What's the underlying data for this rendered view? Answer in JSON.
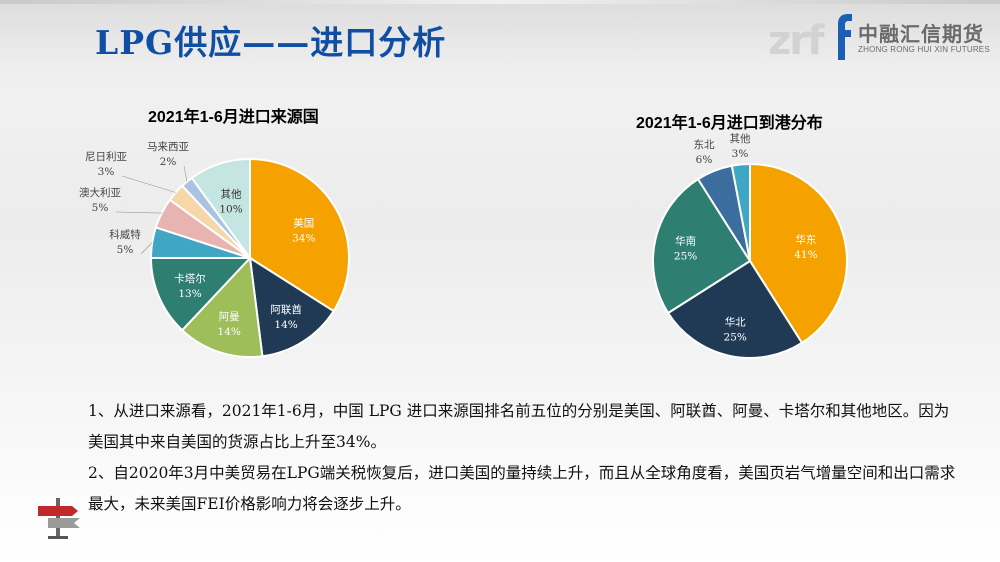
{
  "header": {
    "title": "LPG供应——进口分析",
    "logo": {
      "cn": "中融汇信期货",
      "en": "ZHONG RONG HUI XIN FUTURES",
      "watermark": "zrf"
    }
  },
  "chart_data": [
    {
      "type": "pie",
      "title": "2021年1-6月进口来源国",
      "slices": [
        {
          "label": "美国",
          "value": 34,
          "text": "34%",
          "color": "#F5A200"
        },
        {
          "label": "阿联酋",
          "value": 14,
          "text": "14%",
          "color": "#203A55"
        },
        {
          "label": "阿曼",
          "value": 14,
          "text": "14%",
          "color": "#9DBE58"
        },
        {
          "label": "卡塔尔",
          "value": 13,
          "text": "13%",
          "color": "#2E7F72"
        },
        {
          "label": "科威特",
          "value": 5,
          "text": "5%",
          "color": "#3FA6C4"
        },
        {
          "label": "澳大利亚",
          "value": 5,
          "text": "5%",
          "color": "#E8B4B2"
        },
        {
          "label": "尼日利亚",
          "value": 3,
          "text": "3%",
          "color": "#F6D7A9"
        },
        {
          "label": "马来西亚",
          "value": 2,
          "text": "2%",
          "color": "#A9C4E0"
        },
        {
          "label": "其他",
          "value": 10,
          "text": "10%",
          "color": "#C5E5E2"
        }
      ]
    },
    {
      "type": "pie",
      "title": "2021年1-6月进口到港分布",
      "slices": [
        {
          "label": "华东",
          "value": 41,
          "text": "41%",
          "color": "#F5A200"
        },
        {
          "label": "华北",
          "value": 25,
          "text": "25%",
          "color": "#203A55"
        },
        {
          "label": "华南",
          "value": 25,
          "text": "25%",
          "color": "#2E7F72"
        },
        {
          "label": "东北",
          "value": 6,
          "text": "6%",
          "color": "#3B6E9E"
        },
        {
          "label": "其他",
          "value": 3,
          "text": "3%",
          "color": "#3FA6C4"
        }
      ]
    }
  ],
  "notes": {
    "para1": "1、从进口来源看，2021年1-6月，中国 LPG 进口来源国排名前五位的分别是美国、阿联酋、阿曼、卡塔尔和其他地区。因为美国其中来自美国的货源占比上升至34%。",
    "para2": "2、自2020年3月中美贸易在LPG端关税恢复后，进口美国的量持续上升，而且从全球角度看，美国页岩气增量空间和出口需求最大，未来美国FEI价格影响力将会逐步上升。"
  }
}
